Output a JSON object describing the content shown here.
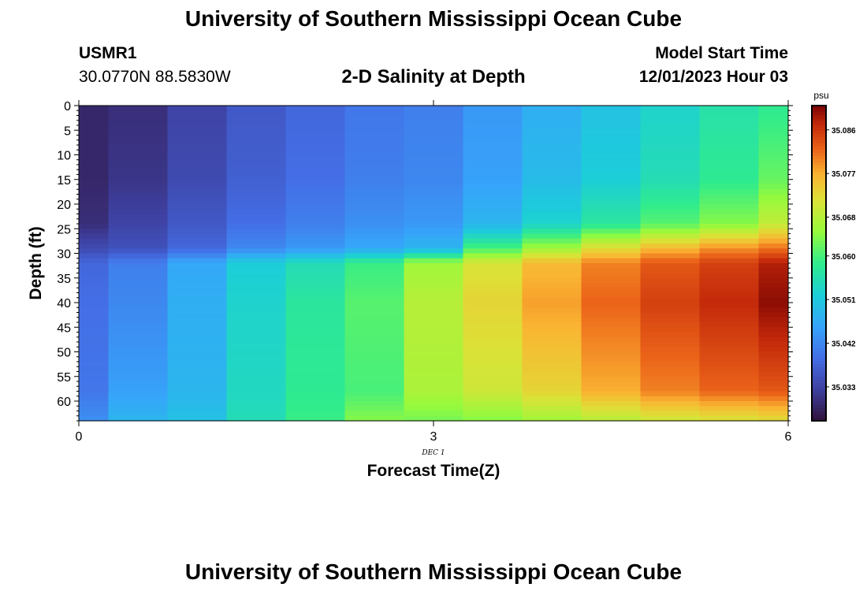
{
  "header": {
    "title": "University of Southern Mississippi Ocean Cube",
    "station_id": "USMR1",
    "coords": "30.0770N  88.5830W",
    "plot_title": "2-D Salinity at Depth",
    "model_start_label": "Model Start Time",
    "model_start_value": "12/01/2023 Hour 03",
    "footer_title": "University of Southern Mississippi Ocean Cube"
  },
  "chart_data": {
    "type": "heatmap",
    "title": "2-D Salinity at Depth",
    "xlabel": "Forecast Time(Z)",
    "ylabel": "Depth (ft)",
    "x_sublabel": "DEC 1",
    "xlim": [
      0,
      6
    ],
    "ylim": [
      0,
      64
    ],
    "x_ticks": [
      "0",
      "3",
      "6"
    ],
    "y_ticks": [
      "0",
      "5",
      "10",
      "15",
      "20",
      "25",
      "30",
      "35",
      "40",
      "45",
      "50",
      "55",
      "60"
    ],
    "x_bin_edges": [
      0,
      0.25,
      0.75,
      1.25,
      1.75,
      2.25,
      2.75,
      3.25,
      3.75,
      4.25,
      4.75,
      5.25,
      5.75,
      6
    ],
    "depth_profile": {
      "depths": [
        0,
        15,
        24,
        29,
        32,
        40,
        58,
        64
      ],
      "columns": [
        [
          35.029,
          35.029,
          35.03,
          35.034,
          35.038,
          35.039,
          35.04,
          35.043
        ],
        [
          35.03,
          35.031,
          35.033,
          35.035,
          35.041,
          35.042,
          35.045,
          35.048
        ],
        [
          35.033,
          35.034,
          35.036,
          35.038,
          35.046,
          35.047,
          35.048,
          35.05
        ],
        [
          35.036,
          35.037,
          35.039,
          35.042,
          35.052,
          35.053,
          35.054,
          35.055
        ],
        [
          35.038,
          35.039,
          35.041,
          35.044,
          35.055,
          35.057,
          35.058,
          35.059
        ],
        [
          35.04,
          35.041,
          35.043,
          35.046,
          35.059,
          35.061,
          35.06,
          35.064
        ],
        [
          35.041,
          35.042,
          35.044,
          35.048,
          35.066,
          35.068,
          35.067,
          35.063
        ],
        [
          35.044,
          35.045,
          35.048,
          35.06,
          35.071,
          35.073,
          35.07,
          35.064
        ],
        [
          35.047,
          35.049,
          35.053,
          35.066,
          35.076,
          35.078,
          35.073,
          35.066
        ],
        [
          35.05,
          35.052,
          35.057,
          35.072,
          35.08,
          35.082,
          35.077,
          35.068
        ],
        [
          35.053,
          35.055,
          35.061,
          35.076,
          35.083,
          35.085,
          35.08,
          35.07
        ],
        [
          35.056,
          35.058,
          35.064,
          35.079,
          35.085,
          35.087,
          35.082,
          35.071
        ],
        [
          35.058,
          35.062,
          35.069,
          35.081,
          35.088,
          35.09,
          35.083,
          35.072
        ]
      ]
    },
    "colorbar": {
      "unit": "psu",
      "range": [
        35.026,
        35.091
      ],
      "ticks": [
        "35.086",
        "35.077",
        "35.068",
        "35.060",
        "35.051",
        "35.042",
        "35.033"
      ]
    }
  }
}
